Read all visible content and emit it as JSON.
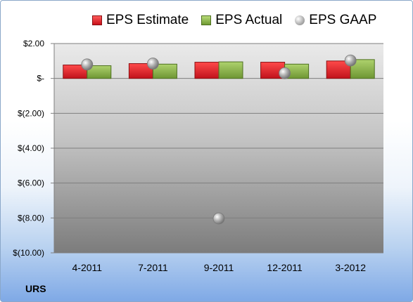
{
  "ticker": "URS",
  "chart_data": {
    "type": "bar",
    "categories": [
      "4-2011",
      "7-2011",
      "9-2011",
      "12-2011",
      "3-2012"
    ],
    "series": [
      {
        "name": "EPS Estimate",
        "type": "bar",
        "color": "#e0232b",
        "values": [
          0.77,
          0.85,
          0.93,
          0.93,
          1.0
        ]
      },
      {
        "name": "EPS Actual",
        "type": "bar",
        "color": "#8fba4a",
        "values": [
          0.73,
          0.82,
          0.95,
          0.82,
          1.08
        ]
      },
      {
        "name": "EPS GAAP",
        "type": "scatter",
        "color": "#a6a6a6",
        "values": [
          0.8,
          0.85,
          -8.03,
          0.3,
          1.03
        ]
      }
    ],
    "yticks": [
      2,
      0,
      -2,
      -4,
      -6,
      -8,
      -10
    ],
    "ytick_labels": [
      "$2.00",
      "$-",
      "$(2.00)",
      "$(4.00)",
      "$(6.00)",
      "$(8.00)",
      "$(10.00)"
    ],
    "ylim": [
      -10,
      2
    ],
    "grid": true,
    "legend_position": "top"
  }
}
